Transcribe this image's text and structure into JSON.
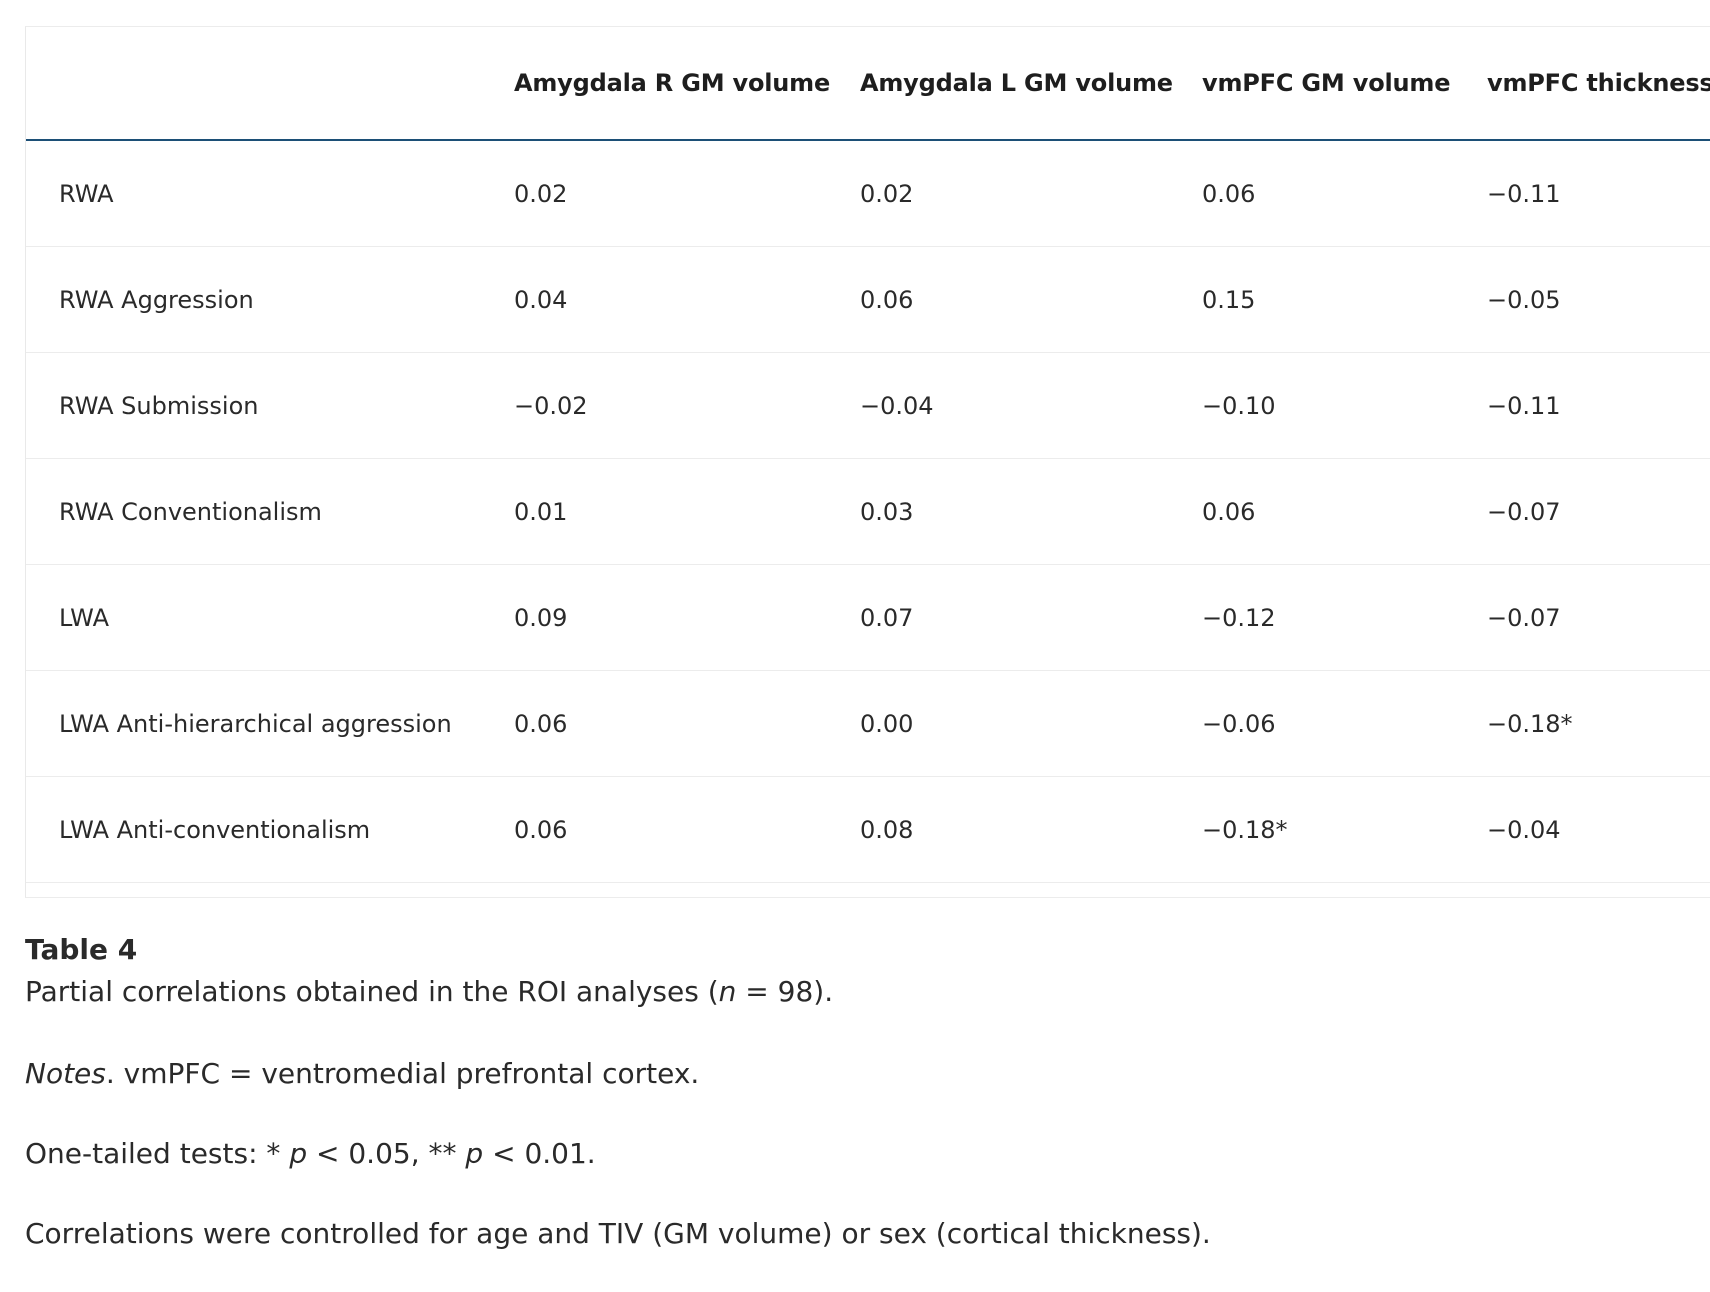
{
  "table": {
    "headers": [
      "",
      "Amygdala R GM volume",
      "Amygdala L GM volume",
      "vmPFC GM volume",
      "vmPFC thickness"
    ],
    "rows": [
      {
        "label": "RWA",
        "values": [
          "0.02",
          "0.02",
          "0.06",
          "−0.11"
        ]
      },
      {
        "label": "RWA Aggression",
        "values": [
          "0.04",
          "0.06",
          "0.15",
          "−0.05"
        ]
      },
      {
        "label": "RWA Submission",
        "values": [
          "−0.02",
          "−0.04",
          "−0.10",
          "−0.11"
        ]
      },
      {
        "label": "RWA Conventionalism",
        "values": [
          "0.01",
          "0.03",
          "0.06",
          "−0.07"
        ]
      },
      {
        "label": "LWA",
        "values": [
          "0.09",
          "0.07",
          "−0.12",
          "−0.07"
        ]
      },
      {
        "label": "LWA Anti-hierarchical aggression",
        "values": [
          "0.06",
          "0.00",
          "−0.06",
          "−0.18*"
        ]
      },
      {
        "label": "LWA Anti-conventionalism",
        "values": [
          "0.06",
          "0.08",
          "−0.18*",
          "−0.04"
        ]
      }
    ]
  },
  "caption": {
    "title": "Table 4",
    "desc_prefix": "Partial correlations obtained in the ROI analyses (",
    "desc_italic": "n",
    "desc_suffix": " = 98).",
    "notes_italic": "Notes",
    "notes_text": ". vmPFC = ventromedial prefrontal cortex.",
    "tests_prefix": "One-tailed tests: * ",
    "tests_p1": "p",
    "tests_mid": " < 0.05, ** ",
    "tests_p2": "p",
    "tests_suffix": " < 0.01.",
    "controls": "Correlations were controlled for age and TIV (GM volume) or sex (cortical thickness)."
  }
}
